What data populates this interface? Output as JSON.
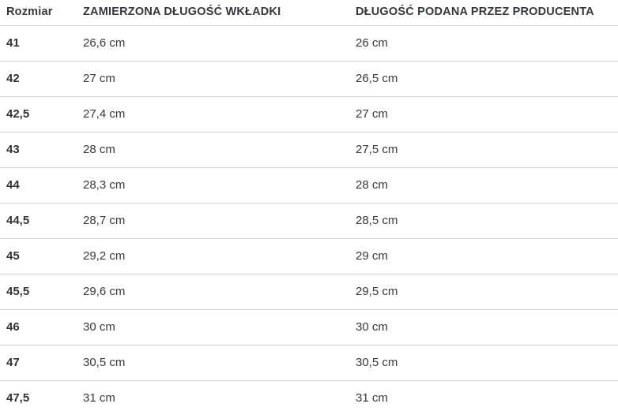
{
  "colors": {
    "background": "#ffffff",
    "text": "#383838",
    "header_text": "#32373c",
    "divider": "#d2d2d2"
  },
  "table": {
    "columns": [
      {
        "label": "Rozmiar"
      },
      {
        "label": "ZAMIERZONA DŁUGOŚĆ WKŁADKI"
      },
      {
        "label": "DŁUGOŚĆ PODANA PRZEZ PRODUCENTA"
      }
    ],
    "rows": [
      {
        "size": "41",
        "insole_length": "26,6 cm",
        "manufacturer_length": "26 cm"
      },
      {
        "size": "42",
        "insole_length": "27 cm",
        "manufacturer_length": "26,5 cm"
      },
      {
        "size": "42,5",
        "insole_length": "27,4 cm",
        "manufacturer_length": "27 cm"
      },
      {
        "size": "43",
        "insole_length": "28 cm",
        "manufacturer_length": "27,5 cm"
      },
      {
        "size": "44",
        "insole_length": "28,3 cm",
        "manufacturer_length": "28 cm"
      },
      {
        "size": "44,5",
        "insole_length": "28,7 cm",
        "manufacturer_length": "28,5 cm"
      },
      {
        "size": "45",
        "insole_length": "29,2 cm",
        "manufacturer_length": "29 cm"
      },
      {
        "size": "45,5",
        "insole_length": "29,6 cm",
        "manufacturer_length": "29,5 cm"
      },
      {
        "size": "46",
        "insole_length": "30 cm",
        "manufacturer_length": "30 cm"
      },
      {
        "size": "47",
        "insole_length": "30,5 cm",
        "manufacturer_length": "30,5 cm"
      },
      {
        "size": "47,5",
        "insole_length": "31 cm",
        "manufacturer_length": "31 cm"
      }
    ]
  },
  "chart_data": {
    "type": "table",
    "title": "",
    "columns": [
      "Rozmiar",
      "ZAMIERZONA DŁUGOŚĆ WKŁADKI",
      "DŁUGOŚĆ PODANA PRZEZ PRODUCENTA"
    ],
    "rows": [
      [
        "41",
        "26,6 cm",
        "26 cm"
      ],
      [
        "42",
        "27 cm",
        "26,5 cm"
      ],
      [
        "42,5",
        "27,4 cm",
        "27 cm"
      ],
      [
        "43",
        "28 cm",
        "27,5 cm"
      ],
      [
        "44",
        "28,3 cm",
        "28 cm"
      ],
      [
        "44,5",
        "28,7 cm",
        "28,5 cm"
      ],
      [
        "45",
        "29,2 cm",
        "29 cm"
      ],
      [
        "45,5",
        "29,6 cm",
        "29,5 cm"
      ],
      [
        "46",
        "30 cm",
        "30 cm"
      ],
      [
        "47",
        "30,5 cm",
        "30,5 cm"
      ],
      [
        "47,5",
        "31 cm",
        "31 cm"
      ]
    ]
  }
}
